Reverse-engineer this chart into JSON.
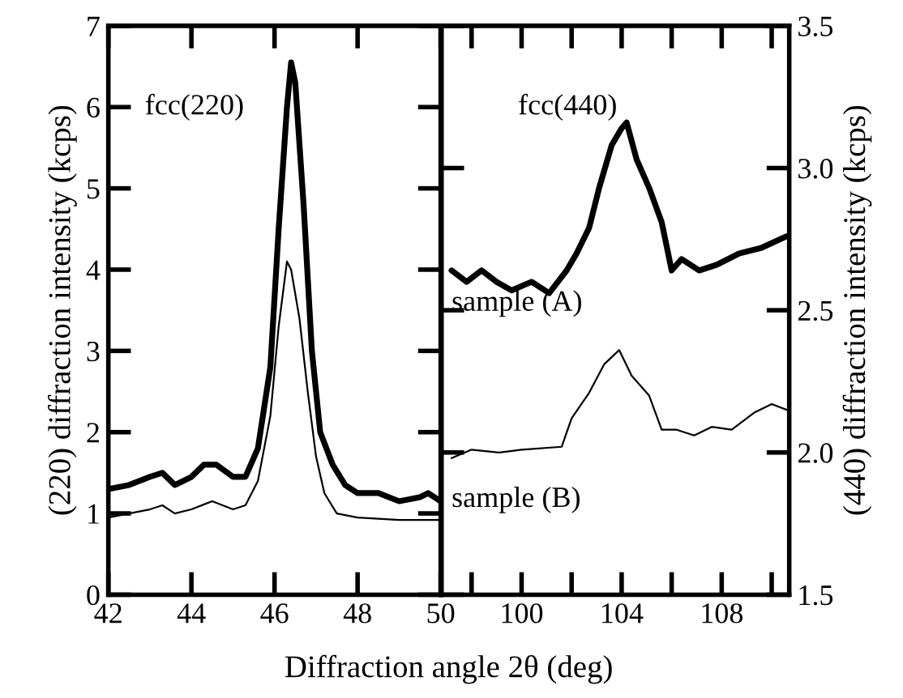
{
  "chart_data": [
    {
      "type": "line",
      "xlabel": "Diffraction angle 2θ (deg)",
      "ylabel": "(220) diffraction intensity (kcps)",
      "xlim": [
        42,
        50
      ],
      "ylim": [
        0,
        7
      ],
      "xticks": [
        42,
        44,
        46,
        48,
        50
      ],
      "yticks": [
        0,
        1,
        2,
        3,
        4,
        5,
        6,
        7
      ],
      "grid": false,
      "annotations": [
        "fcc(220)"
      ],
      "series": [
        {
          "color": "#000000",
          "x": [
            42,
            42.5,
            43,
            43.3,
            43.6,
            44,
            44.3,
            44.6,
            45,
            45.3,
            45.6,
            45.9,
            46.1,
            46.3,
            46.4,
            46.5,
            46.7,
            46.9,
            47.1,
            47.4,
            47.7,
            48,
            48.5,
            49,
            49.5,
            49.7,
            50
          ],
          "values": [
            1.3,
            1.35,
            1.45,
            1.5,
            1.35,
            1.45,
            1.6,
            1.6,
            1.45,
            1.45,
            1.8,
            2.8,
            4.5,
            6.0,
            6.55,
            6.3,
            4.8,
            3.0,
            2.0,
            1.6,
            1.35,
            1.25,
            1.25,
            1.15,
            1.2,
            1.25,
            1.15
          ]
        },
        {
          "color": "#000000",
          "x": [
            42,
            42.5,
            43,
            43.3,
            43.6,
            44,
            44.5,
            45,
            45.3,
            45.6,
            45.9,
            46.1,
            46.3,
            46.4,
            46.6,
            46.8,
            47,
            47.2,
            47.5,
            48,
            49,
            50
          ],
          "values": [
            0.95,
            1.0,
            1.05,
            1.1,
            1.0,
            1.05,
            1.15,
            1.05,
            1.1,
            1.4,
            2.2,
            3.3,
            4.1,
            4.0,
            3.4,
            2.5,
            1.7,
            1.25,
            1.0,
            0.95,
            0.92,
            0.92
          ]
        }
      ]
    },
    {
      "type": "line",
      "ylabel": "(440) diffraction intensity (kcps)",
      "xlim": [
        96.8,
        110.7
      ],
      "ylim": [
        1.5,
        3.5
      ],
      "xticks": [
        {
          "value": 98,
          "label": null
        },
        100,
        {
          "value": 102,
          "label": null
        },
        104,
        {
          "value": 106,
          "label": null
        },
        108,
        {
          "value": 110,
          "label": null
        }
      ],
      "yticks": [
        1.5,
        {
          "value": 2,
          "label": "2.0"
        },
        2.5,
        {
          "value": 3,
          "label": "3.0"
        },
        3.5
      ],
      "grid": false,
      "legend": "left",
      "annotations": [
        "fcc(440)"
      ],
      "series": [
        {
          "name": "sample (A)",
          "color": "#000000",
          "x": [
            97.2,
            97.8,
            98.4,
            99.0,
            99.6,
            100.4,
            101.1,
            101.8,
            102.2,
            102.7,
            103.1,
            103.6,
            104.0,
            104.2,
            104.6,
            105.1,
            105.6,
            106.0,
            106.4,
            107.1,
            107.8,
            108.7,
            109.6,
            110.6
          ],
          "values": [
            2.64,
            2.6,
            2.64,
            2.6,
            2.57,
            2.6,
            2.56,
            2.64,
            2.7,
            2.79,
            2.93,
            3.08,
            3.14,
            3.16,
            3.03,
            2.93,
            2.81,
            2.64,
            2.68,
            2.64,
            2.66,
            2.7,
            2.72,
            2.76
          ]
        },
        {
          "name": "sample (B)",
          "color": "#000000",
          "x": [
            97.2,
            98.0,
            99.1,
            100.0,
            101.6,
            102.0,
            102.7,
            103.3,
            103.9,
            104.4,
            105.1,
            105.6,
            106.2,
            106.9,
            107.6,
            108.4,
            109.3,
            110.0,
            110.6
          ],
          "values": [
            1.98,
            2.01,
            2.0,
            2.01,
            2.02,
            2.12,
            2.21,
            2.31,
            2.36,
            2.27,
            2.2,
            2.08,
            2.08,
            2.06,
            2.09,
            2.08,
            2.14,
            2.17,
            2.15
          ]
        }
      ]
    }
  ]
}
